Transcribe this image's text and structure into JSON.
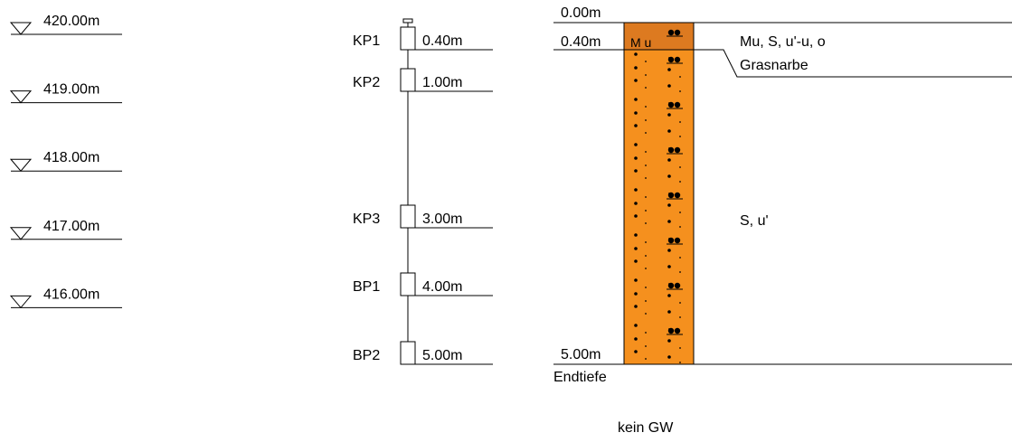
{
  "elevations": [
    "420.00m",
    "419.00m",
    "418.00m",
    "417.00m",
    "416.00m"
  ],
  "samples": [
    {
      "name": "KP1",
      "depth": "0.40m"
    },
    {
      "name": "KP2",
      "depth": "1.00m"
    },
    {
      "name": "KP3",
      "depth": "3.00m"
    },
    {
      "name": "BP1",
      "depth": "4.00m"
    },
    {
      "name": "BP2",
      "depth": "5.00m"
    }
  ],
  "profile": {
    "top_depth": "0.00m",
    "layers": [
      {
        "depth": "0.40m",
        "code": "M u",
        "description": "Mu, S, u'-u, o",
        "note": "Grasnarbe"
      },
      {
        "depth": "5.00m",
        "description": "S, u'",
        "note": "Endtiefe"
      }
    ],
    "groundwater": "kein GW"
  }
}
